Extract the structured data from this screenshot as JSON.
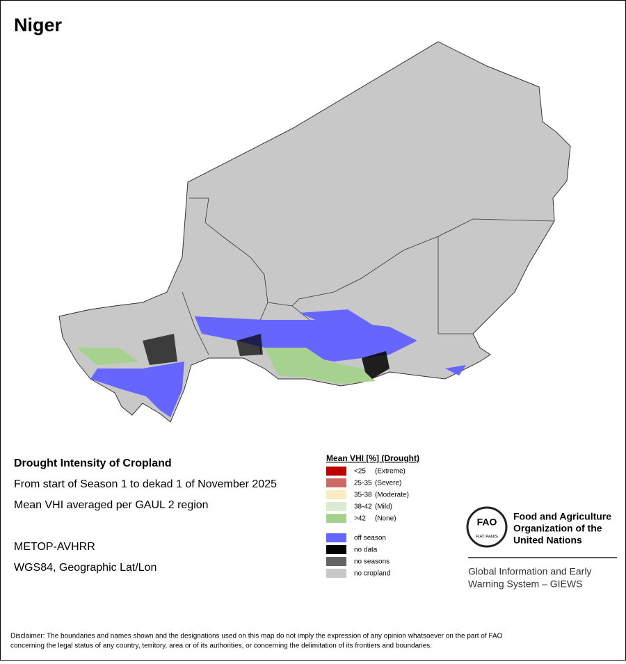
{
  "title": "Niger",
  "info": {
    "heading": "Drought Intensity of Cropland",
    "lines": [
      "From start of Season 1 to dekad 1 of November 2025",
      "Mean VHI averaged per GAUL 2 region"
    ],
    "sensor": "METOP-AVHRR",
    "projection": "WGS84, Geographic Lat/Lon"
  },
  "legend": {
    "title": "Mean VHI [%] (Drought)",
    "classes": [
      {
        "range": "<25",
        "class": "(Extreme)",
        "color": "#c00000"
      },
      {
        "range": "25-35",
        "class": "(Severe)",
        "color": "#cd6a64"
      },
      {
        "range": "35-38",
        "class": "(Moderate)",
        "color": "#fdebc4"
      },
      {
        "range": "38-42",
        "class": "(Mild)",
        "color": "#dcebd0"
      },
      {
        "range": ">42",
        "class": "(None)",
        "color": "#a6d18e"
      }
    ],
    "other": [
      {
        "label": "off season",
        "color": "#6666ff"
      },
      {
        "label": "no data",
        "color": "#000000"
      },
      {
        "label": "no seasons",
        "color": "#646464"
      },
      {
        "label": "no cropland",
        "color": "#c8c8c8"
      }
    ]
  },
  "fao": {
    "logo": "FAO",
    "motto": "FIAT PANIS",
    "name": [
      "Food and Agriculture",
      "Organization of the",
      "United Nations"
    ],
    "giews": [
      "Global Information and Early",
      "Warning System – GIEWS"
    ]
  },
  "disclaimer": [
    "Disclaimer: The boundaries and names shown and the designations used on this map do not imply the expression of any opinion whatsoever on the part of FAO",
    "concerning the legal status of any country, territory, area or of its authorities, or concerning the delimitation of its frontiers and boundaries."
  ]
}
